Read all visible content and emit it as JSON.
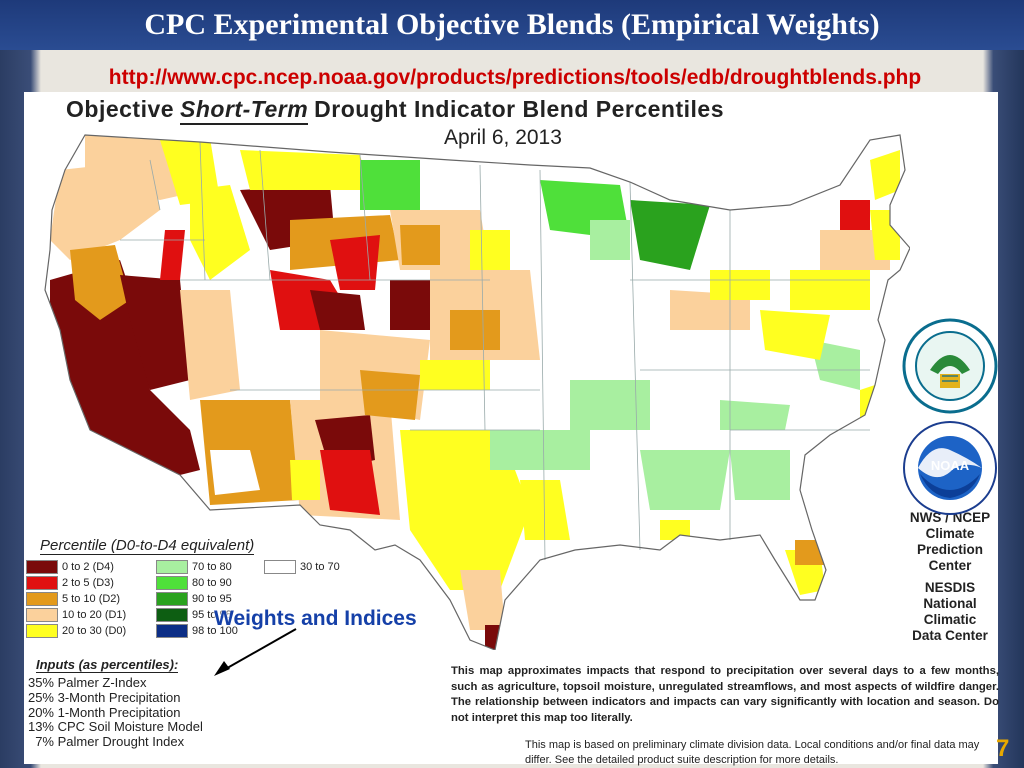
{
  "slide": {
    "title": "CPC Experimental Objective Blends (Empirical Weights)",
    "url": "http://www.cpc.ncep.noaa.gov/products/predictions/tools/edb/droughtblends.php",
    "page_number": "7"
  },
  "map": {
    "title_pre": "Objective",
    "title_emph": "Short-Term",
    "title_post": "Drought Indicator Blend Percentiles",
    "date": "April 6, 2013"
  },
  "legend": {
    "title": "Percentile  (D0-to-D4 equivalent)",
    "items": [
      {
        "label": "0 to 2  (D4)",
        "color": "#7a0a0a"
      },
      {
        "label": "2 to 5  (D3)",
        "color": "#e01010"
      },
      {
        "label": "5 to 10  (D2)",
        "color": "#e39a1c"
      },
      {
        "label": "10 to 20  (D1)",
        "color": "#fbd19c"
      },
      {
        "label": "20 to 30  (D0)",
        "color": "#ffff20"
      },
      {
        "label": "70 to 80",
        "color": "#a8efa0"
      },
      {
        "label": "80 to 90",
        "color": "#4fe03a"
      },
      {
        "label": "90 to 95",
        "color": "#2aa21e"
      },
      {
        "label": "95 to 98",
        "color": "#0d5e12"
      },
      {
        "label": "98 to 100",
        "color": "#0c2e86"
      },
      {
        "label": "30 to 70",
        "color": "#ffffff"
      }
    ]
  },
  "callout": "Weights and Indices",
  "inputs": {
    "title": "Inputs (as percentiles):",
    "items": [
      {
        "pct": "35%",
        "name": "Palmer Z-Index"
      },
      {
        "pct": "25%",
        "name": "3-Month Precipitation"
      },
      {
        "pct": "20%",
        "name": "1-Month Precipitation"
      },
      {
        "pct": "13%",
        "name": "CPC Soil Moisture Model"
      },
      {
        "pct": "7%",
        "name": "Palmer Drought Index"
      }
    ]
  },
  "description": "This map approximates impacts that respond to precipitation over several days to a few months, such as agriculture, topsoil moisture, unregulated streamflows, and most aspects of wildfire danger. The relationship between indicators and impacts can vary significantly with location and season. Do not interpret this map too literally.",
  "note": "This map is based on preliminary climate division data. Local conditions and/or final data may differ. See the detailed product suite description for more details.",
  "agency": {
    "line1": "NWS / NCEP",
    "line2": "Climate",
    "line3": "Prediction",
    "line4": "Center",
    "line5": "NESDIS",
    "line6": "National",
    "line7": "Climatic",
    "line8": "Data Center"
  },
  "logos": {
    "commerce": "DEPARTMENT OF COMMERCE · UNITED STATES OF AMERICA",
    "noaa_text": "NOAA",
    "noaa_ring": "NATIONAL OCEANIC AND ATMOSPHERIC ADMINISTRATION · U.S. DEPARTMENT OF COMMERCE"
  },
  "colors": {
    "d4": "#7a0a0a",
    "d3": "#e01010",
    "d2": "#e39a1c",
    "d1": "#fbd19c",
    "d0": "#ffff20",
    "w70": "#a8efa0",
    "w80": "#4fe03a",
    "w90": "#2aa21e",
    "w95": "#0d5e12",
    "w98": "#0c2e86"
  }
}
